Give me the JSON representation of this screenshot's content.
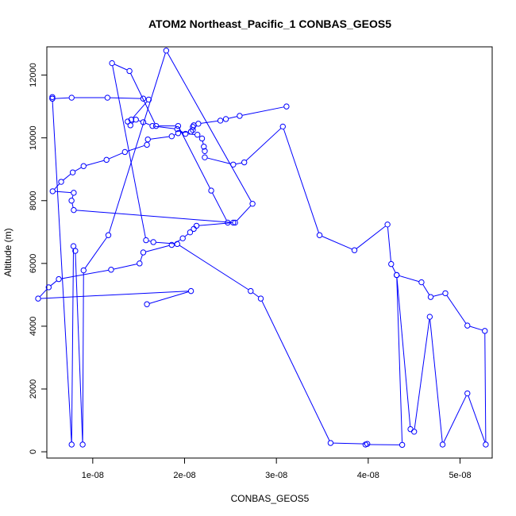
{
  "chart_data": {
    "type": "line",
    "title": "ATOM2 Northeast_Pacific_1 CONBAS_GEOS5",
    "xlabel": "CONBAS_GEOS5",
    "ylabel": "Altitude (m)",
    "xlim": [
      5e-09,
      5.35e-08
    ],
    "ylim": [
      -200,
      12900
    ],
    "x_ticks": [
      {
        "value": 1e-08,
        "label": "1e-08"
      },
      {
        "value": 2e-08,
        "label": "2e-08"
      },
      {
        "value": 3e-08,
        "label": "3e-08"
      },
      {
        "value": 4e-08,
        "label": "4e-08"
      },
      {
        "value": 5e-08,
        "label": "5e-08"
      }
    ],
    "y_ticks": [
      {
        "value": 0,
        "label": "0"
      },
      {
        "value": 2000,
        "label": "2000"
      },
      {
        "value": 4000,
        "label": "4000"
      },
      {
        "value": 6000,
        "label": "6000"
      },
      {
        "value": 8000,
        "label": "8000"
      },
      {
        "value": 10000,
        "label": "10000"
      },
      {
        "value": 12000,
        "label": "12000"
      }
    ],
    "grid": false,
    "line_color": "#0000ff",
    "marker": "open-circle",
    "series": [
      {
        "x": [
          1.59e-08,
          2.07e-08,
          4.05e-09,
          5.2e-09,
          6.3e-09,
          1.2e-08,
          1.51e-08,
          1.55e-08,
          1.86e-08,
          1.98e-08,
          2.06e-08,
          2.1e-08,
          2.13e-08,
          2.53e-08,
          7.93e-09,
          7.69e-09,
          7.93e-09,
          5.63e-09,
          6.56e-09,
          7.82e-09,
          9e-09,
          1.15e-08,
          1.35e-08,
          1.59e-08,
          1.6e-08,
          1.86e-08,
          1.93e-08,
          2.07e-08,
          2.09e-08,
          2.09e-08,
          2.1e-08,
          2.15e-08,
          2.39e-08,
          2.45e-08,
          2.6e-08,
          3.11e-08
        ],
        "y": [
          4700,
          5120,
          4880,
          5240,
          5500,
          5800,
          6000,
          6350,
          6590,
          6800,
          6990,
          7100,
          7200,
          7300,
          7700,
          8000,
          8250,
          8300,
          8600,
          8900,
          9100,
          9300,
          9550,
          9780,
          9950,
          10050,
          10150,
          10200,
          10250,
          10350,
          10400,
          10450,
          10550,
          10600,
          10700,
          11000
        ]
      },
      {
        "x": [
          5.6e-09,
          5.6e-09,
          7.7e-09,
          1.16e-08,
          1.55e-08,
          1.61e-08,
          1.42e-08,
          1.38e-08,
          1.41e-08,
          1.47e-08,
          1.55e-08,
          1.65e-08,
          1.92e-08,
          2.01e-08,
          2.14e-08,
          2.19e-08,
          2.21e-08,
          2.22e-08,
          2.22e-08,
          2.53e-08,
          2.65e-08,
          3.07e-08,
          3.47e-08,
          3.85e-08,
          4.21e-08,
          4.25e-08,
          4.31e-08,
          4.58e-08,
          4.68e-08,
          4.84e-08,
          5.08e-08,
          5.27e-08,
          5.28e-08,
          5.08e-08,
          4.81e-08,
          4.67e-08,
          4.5e-08,
          4.46e-08,
          4.31e-08,
          4.37e-08,
          3.97e-08,
          3.99e-08,
          3.59e-08,
          2.83e-08,
          2.72e-08,
          1.92e-08,
          1.66e-08,
          1.58e-08,
          1.21e-08,
          1.4e-08,
          1.69e-08,
          1.93e-08,
          2.29e-08,
          2.47e-08,
          2.55e-08,
          2.74e-08,
          1.8e-08,
          1.17e-08,
          9e-09,
          8.9e-09,
          8.1e-09,
          7.9e-09,
          7.7e-09,
          5.6e-09
        ],
        "y": [
          11300,
          11250,
          11280,
          11280,
          11250,
          11220,
          10580,
          10520,
          10400,
          10580,
          10500,
          10380,
          10280,
          10130,
          10100,
          9980,
          9720,
          9580,
          9380,
          9150,
          9220,
          10360,
          6900,
          6420,
          7240,
          5980,
          5630,
          5400,
          4930,
          5050,
          4020,
          3850,
          230,
          1860,
          230,
          4300,
          640,
          720,
          5630,
          220,
          230,
          250,
          280,
          4880,
          5120,
          6620,
          6680,
          6740,
          12380,
          12130,
          10380,
          10380,
          8320,
          7300,
          7300,
          7900,
          12780,
          6900,
          5780,
          230,
          6400,
          6550,
          230,
          11250
        ]
      }
    ]
  }
}
